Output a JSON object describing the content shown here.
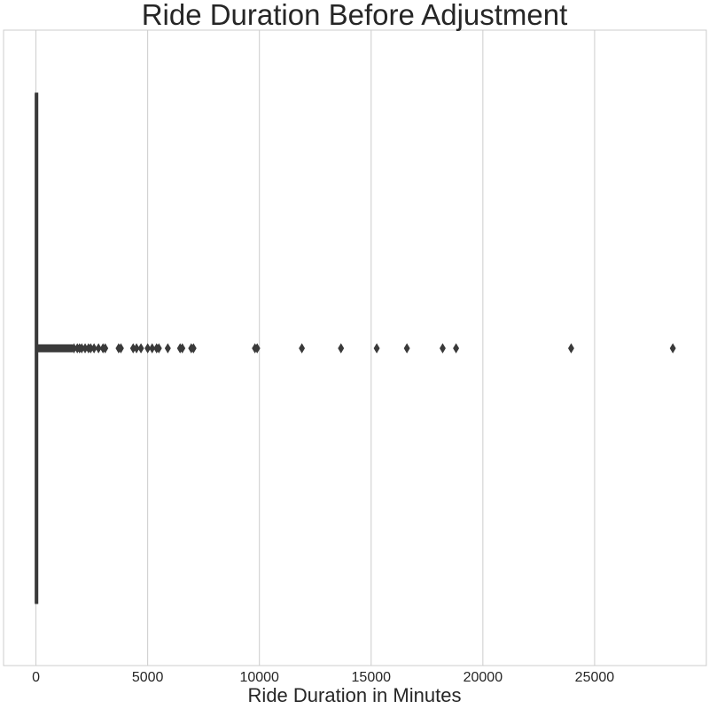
{
  "chart_data": {
    "type": "box",
    "orientation": "horizontal",
    "title": "Ride Duration Before Adjustment",
    "xlabel": "Ride Duration in Minutes",
    "ylabel": "",
    "xlim": [
      -1450,
      30000
    ],
    "xticks": [
      0,
      5000,
      10000,
      15000,
      20000,
      25000
    ],
    "grid": "vertical",
    "box": {
      "q1": 6,
      "median": 10,
      "q3": 17,
      "whisker_low": 1,
      "whisker_high": 40
    },
    "dense_outlier_range": [
      45,
      1650
    ],
    "outliers": [
      1700,
      1850,
      1950,
      2050,
      2200,
      2350,
      2450,
      2600,
      2800,
      3000,
      3100,
      3700,
      3800,
      4350,
      4500,
      4700,
      5000,
      5200,
      5400,
      5500,
      5900,
      6450,
      6550,
      6950,
      7050,
      9800,
      9900,
      11900,
      13650,
      15250,
      16600,
      18200,
      18800,
      23950,
      28500
    ],
    "colors": {
      "box": "#3a3a3a",
      "grid": "#cccccc",
      "frame": "#cccccc",
      "text": "#262626"
    }
  }
}
